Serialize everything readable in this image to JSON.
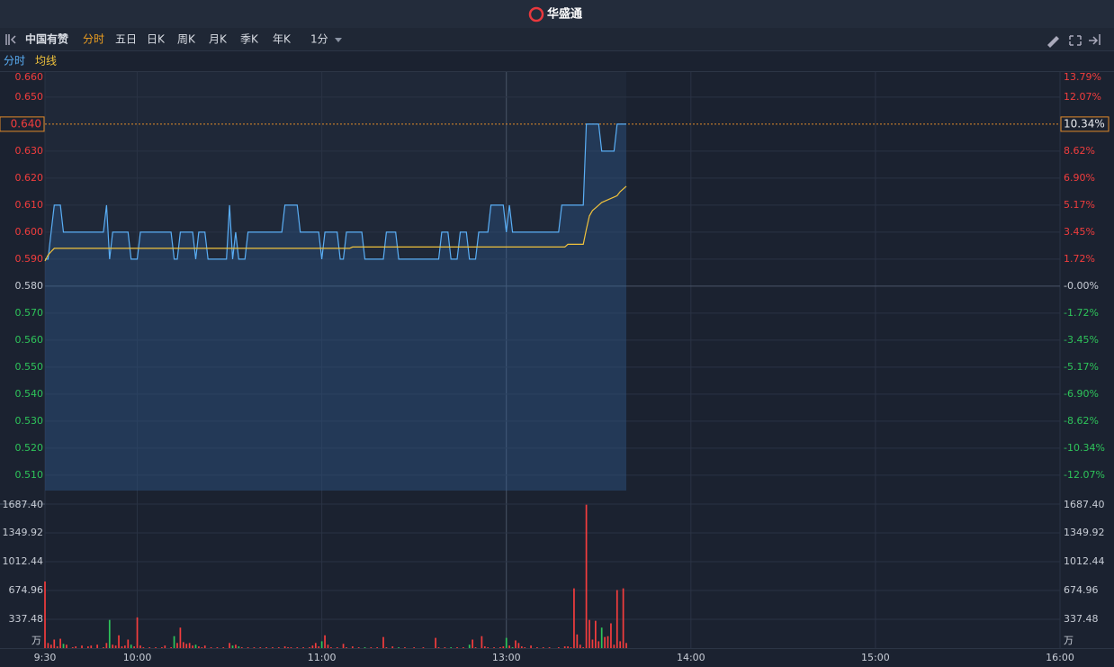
{
  "header": {
    "logo": "华盛通"
  },
  "toolbar": {
    "stock_name": "中国有赞",
    "tabs": [
      "分时",
      "五日",
      "日K",
      "周K",
      "月K",
      "季K",
      "年K"
    ],
    "period": "1分"
  },
  "chart_data": [
    {
      "type": "line",
      "series": [
        {
          "name": "分时",
          "color": "#5aaef5",
          "values": [
            0.59,
            0.59,
            0.6,
            0.61,
            0.61,
            0.61,
            0.6,
            0.6,
            0.6,
            0.6,
            0.6,
            0.6,
            0.6,
            0.6,
            0.6,
            0.6,
            0.6,
            0.6,
            0.6,
            0.6,
            0.61,
            0.59,
            0.6,
            0.6,
            0.6,
            0.6,
            0.6,
            0.6,
            0.59,
            0.59,
            0.59,
            0.6,
            0.6,
            0.6,
            0.6,
            0.6,
            0.6,
            0.6,
            0.6,
            0.6,
            0.6,
            0.6,
            0.59,
            0.59,
            0.6,
            0.6,
            0.6,
            0.6,
            0.6,
            0.59,
            0.6,
            0.6,
            0.6,
            0.59,
            0.59,
            0.59,
            0.59,
            0.59,
            0.59,
            0.59,
            0.61,
            0.59,
            0.6,
            0.59,
            0.59,
            0.59,
            0.6,
            0.6,
            0.6,
            0.6,
            0.6,
            0.6,
            0.6,
            0.6,
            0.6,
            0.6,
            0.6,
            0.6,
            0.61,
            0.61,
            0.61,
            0.61,
            0.61,
            0.6,
            0.6,
            0.6,
            0.6,
            0.6,
            0.6,
            0.6,
            0.59,
            0.6,
            0.6,
            0.6,
            0.6,
            0.6,
            0.59,
            0.59,
            0.6,
            0.6,
            0.6,
            0.6,
            0.6,
            0.6,
            0.59,
            0.59,
            0.59,
            0.59,
            0.59,
            0.59,
            0.59,
            0.6,
            0.6,
            0.6,
            0.6,
            0.59,
            0.59,
            0.59,
            0.59,
            0.59,
            0.59,
            0.59,
            0.59,
            0.59,
            0.59,
            0.59,
            0.59,
            0.59,
            0.59,
            0.6,
            0.6,
            0.6,
            0.59,
            0.59,
            0.59,
            0.6,
            0.6,
            0.6,
            0.59,
            0.59,
            0.59,
            0.6,
            0.6,
            0.6,
            0.6,
            0.61,
            0.61,
            0.61,
            0.61,
            0.61,
            0.6,
            0.61,
            0.6,
            0.6,
            0.6,
            0.6,
            0.6,
            0.6,
            0.6,
            0.6,
            0.6,
            0.6,
            0.6,
            0.6,
            0.6,
            0.6,
            0.6,
            0.6,
            0.61,
            0.61,
            0.61,
            0.61,
            0.61,
            0.61,
            0.61,
            0.61,
            0.64,
            0.64,
            0.64,
            0.64,
            0.64,
            0.63,
            0.63,
            0.63,
            0.63,
            0.63,
            0.64,
            0.64,
            0.64,
            0.64
          ]
        },
        {
          "name": "均线",
          "color": "#f0c23c",
          "values": [
            0.5893,
            0.5915,
            0.5928,
            0.594,
            0.594,
            0.594,
            0.594,
            0.594,
            0.594,
            0.594,
            0.594,
            0.594,
            0.594,
            0.594,
            0.594,
            0.594,
            0.594,
            0.594,
            0.594,
            0.594,
            0.594,
            0.594,
            0.594,
            0.594,
            0.594,
            0.594,
            0.594,
            0.594,
            0.594,
            0.594,
            0.594,
            0.594,
            0.594,
            0.594,
            0.594,
            0.594,
            0.594,
            0.594,
            0.594,
            0.594,
            0.594,
            0.594,
            0.594,
            0.594,
            0.594,
            0.594,
            0.594,
            0.594,
            0.594,
            0.594,
            0.594,
            0.594,
            0.594,
            0.594,
            0.594,
            0.594,
            0.594,
            0.594,
            0.594,
            0.594,
            0.594,
            0.594,
            0.594,
            0.594,
            0.594,
            0.594,
            0.594,
            0.594,
            0.594,
            0.594,
            0.594,
            0.594,
            0.594,
            0.594,
            0.594,
            0.594,
            0.594,
            0.594,
            0.594,
            0.594,
            0.594,
            0.594,
            0.594,
            0.594,
            0.594,
            0.594,
            0.594,
            0.594,
            0.594,
            0.594,
            0.594,
            0.594,
            0.594,
            0.594,
            0.594,
            0.594,
            0.594,
            0.594,
            0.594,
            0.594,
            0.5945,
            0.5945,
            0.5945,
            0.5945,
            0.5945,
            0.5945,
            0.5945,
            0.5945,
            0.5945,
            0.5945,
            0.5945,
            0.5945,
            0.5945,
            0.5945,
            0.5945,
            0.5945,
            0.5945,
            0.5945,
            0.5945,
            0.5945,
            0.5945,
            0.5945,
            0.5945,
            0.5945,
            0.5945,
            0.5945,
            0.5945,
            0.5945,
            0.5945,
            0.5945,
            0.5945,
            0.5945,
            0.5945,
            0.5945,
            0.5945,
            0.5945,
            0.5945,
            0.5945,
            0.5945,
            0.5945,
            0.5945,
            0.5945,
            0.5945,
            0.5945,
            0.5945,
            0.5945,
            0.5945,
            0.5945,
            0.5945,
            0.5945,
            0.5945,
            0.5945,
            0.5945,
            0.5945,
            0.5945,
            0.5945,
            0.5945,
            0.5945,
            0.5945,
            0.5945,
            0.5945,
            0.5945,
            0.5945,
            0.5945,
            0.5945,
            0.5945,
            0.5945,
            0.5945,
            0.5945,
            0.5945,
            0.5955,
            0.5955,
            0.5955,
            0.5955,
            0.5955,
            0.5955,
            0.601,
            0.606,
            0.608,
            0.609,
            0.61,
            0.611,
            0.6115,
            0.612,
            0.6125,
            0.613,
            0.6135,
            0.615,
            0.616,
            0.617
          ]
        }
      ],
      "xlim": [
        0,
        330
      ],
      "xticks": [
        {
          "value": 0,
          "label": "9:30"
        },
        {
          "value": 30,
          "label": "10:00"
        },
        {
          "value": 90,
          "label": "11:00"
        },
        {
          "value": 150,
          "label": "13:00"
        },
        {
          "value": 210,
          "label": "14:00"
        },
        {
          "value": 270,
          "label": "15:00"
        },
        {
          "value": 330,
          "label": "16:00"
        }
      ],
      "ylim": [
        0.5043,
        0.6593
      ],
      "yticks": [
        {
          "value": 0.66,
          "label": "0.660"
        },
        {
          "value": 0.65,
          "label": "0.650"
        },
        {
          "value": 0.63,
          "label": "0.630"
        },
        {
          "value": 0.62,
          "label": "0.620"
        },
        {
          "value": 0.61,
          "label": "0.610"
        },
        {
          "value": 0.6,
          "label": "0.600"
        },
        {
          "value": 0.59,
          "label": "0.590"
        },
        {
          "value": 0.58,
          "label": "0.580"
        },
        {
          "value": 0.57,
          "label": "0.570"
        },
        {
          "value": 0.56,
          "label": "0.560"
        },
        {
          "value": 0.55,
          "label": "0.550"
        },
        {
          "value": 0.54,
          "label": "0.540"
        },
        {
          "value": 0.53,
          "label": "0.530"
        },
        {
          "value": 0.52,
          "label": "0.520"
        },
        {
          "value": 0.51,
          "label": "0.510"
        }
      ],
      "y2lim": [
        -13.05,
        13.67
      ],
      "y2ticks": [
        {
          "value": 13.79,
          "label": "13.79%"
        },
        {
          "value": 12.07,
          "label": "12.07%"
        },
        {
          "value": 8.62,
          "label": "8.62%"
        },
        {
          "value": 6.9,
          "label": "6.90%"
        },
        {
          "value": 5.17,
          "label": "5.17%"
        },
        {
          "value": 3.45,
          "label": "3.45%"
        },
        {
          "value": 1.72,
          "label": "1.72%"
        },
        {
          "value": 0,
          "label": "-0.00%"
        },
        {
          "value": -1.72,
          "label": "-1.72%"
        },
        {
          "value": -3.45,
          "label": "-3.45%"
        },
        {
          "value": -5.17,
          "label": "-5.17%"
        },
        {
          "value": -6.9,
          "label": "-6.90%"
        },
        {
          "value": -8.62,
          "label": "-8.62%"
        },
        {
          "value": -10.34,
          "label": "-10.34%"
        },
        {
          "value": -12.07,
          "label": "-12.07%"
        }
      ],
      "last_price": {
        "value": 0.64,
        "label": "0.640"
      },
      "last_change": {
        "value": 10.34,
        "label": "10.34%"
      },
      "grid": true,
      "up_color": "#f23d3d",
      "down_color": "#2ec45a"
    },
    {
      "type": "bar",
      "values": [
        780,
        60,
        40,
        100,
        20,
        110,
        50,
        40,
        0,
        10,
        20,
        0,
        30,
        0,
        20,
        30,
        0,
        40,
        0,
        10,
        60,
        330,
        40,
        30,
        150,
        20,
        30,
        100,
        40,
        20,
        360,
        30,
        10,
        0,
        10,
        0,
        10,
        0,
        10,
        30,
        0,
        10,
        140,
        60,
        240,
        70,
        50,
        60,
        30,
        40,
        20,
        10,
        30,
        0,
        10,
        0,
        10,
        0,
        10,
        0,
        60,
        30,
        40,
        20,
        10,
        0,
        10,
        0,
        10,
        0,
        10,
        0,
        10,
        0,
        10,
        0,
        10,
        0,
        20,
        10,
        10,
        0,
        10,
        0,
        10,
        0,
        10,
        30,
        60,
        20,
        80,
        150,
        40,
        10,
        0,
        10,
        0,
        50,
        10,
        0,
        20,
        0,
        10,
        0,
        10,
        0,
        10,
        0,
        10,
        0,
        130,
        10,
        0,
        20,
        0,
        10,
        0,
        10,
        0,
        0,
        10,
        0,
        0,
        10,
        0,
        0,
        0,
        120,
        10,
        0,
        10,
        0,
        10,
        0,
        10,
        0,
        10,
        0,
        40,
        100,
        10,
        0,
        140,
        20,
        10,
        0,
        10,
        0,
        10,
        20,
        120,
        30,
        10,
        90,
        60,
        20,
        10,
        0,
        30,
        0,
        10,
        0,
        10,
        0,
        10,
        0,
        0,
        10,
        0,
        20,
        20,
        10,
        700,
        160,
        40,
        10,
        1680,
        330,
        100,
        320,
        80,
        240,
        130,
        140,
        290,
        40,
        680,
        80,
        700,
        60
      ],
      "ylim": [
        0,
        1687.4
      ],
      "yticks": [
        {
          "value": 1687.4,
          "label": "1687.40"
        },
        1349.92,
        1012.44,
        674.96,
        337.48
      ],
      "unit": "万",
      "grid": true,
      "up_color": "#f23d3d",
      "down_color": "#2ec45a"
    }
  ]
}
